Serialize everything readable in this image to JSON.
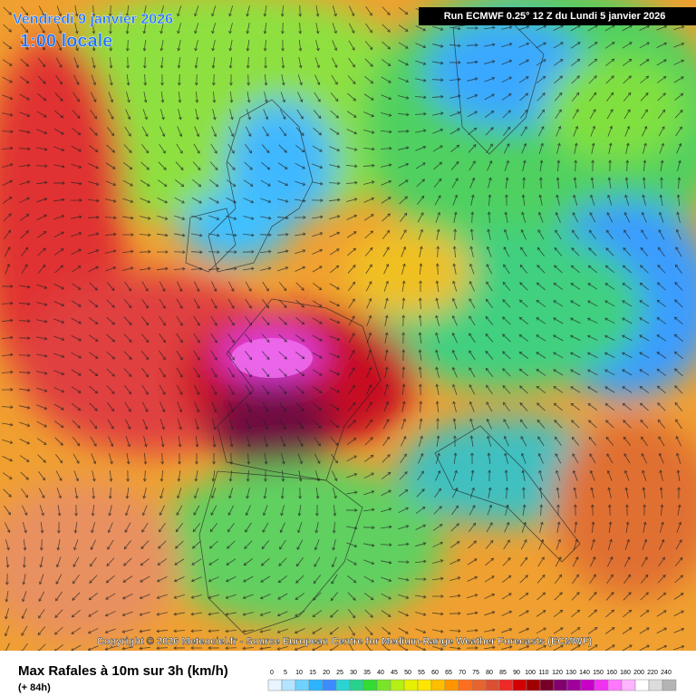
{
  "header": {
    "date": "Vendredi 9 janvier 2026",
    "time": "1:00 locale",
    "run": "Run ECMWF 0.25° 12 Z du Lundi 5 janvier 2026"
  },
  "footer": {
    "copyright": "Copyright © 2026 Meteociel.fr - Source European Centre for Medium-Range Weather Forecasts (ECMWF)",
    "title": "Max Rafales à 10m sur 3h (km/h)",
    "subtitle": "(+ 84h)"
  },
  "legend": {
    "ticks": [
      0,
      5,
      10,
      15,
      20,
      25,
      30,
      35,
      40,
      45,
      50,
      55,
      60,
      65,
      70,
      75,
      80,
      85,
      90,
      100,
      110,
      120,
      130,
      140,
      150,
      160,
      180,
      200,
      220,
      240
    ],
    "colors": [
      "#e8f4ff",
      "#b4e4ff",
      "#6ed2ff",
      "#2cb4ff",
      "#3c8cff",
      "#2ad4d4",
      "#28d28c",
      "#32dc32",
      "#78e628",
      "#b4f014",
      "#e6f000",
      "#ffe600",
      "#ffbe00",
      "#ff9600",
      "#ff6e1e",
      "#e6642d",
      "#dc5032",
      "#f02828",
      "#d20000",
      "#a00000",
      "#780028",
      "#82006e",
      "#a0009b",
      "#c800c8",
      "#f032f0",
      "#ff78ff",
      "#ffb4ff",
      "#ffffff",
      "#dcdcdc",
      "#b4b4b4"
    ]
  }
}
